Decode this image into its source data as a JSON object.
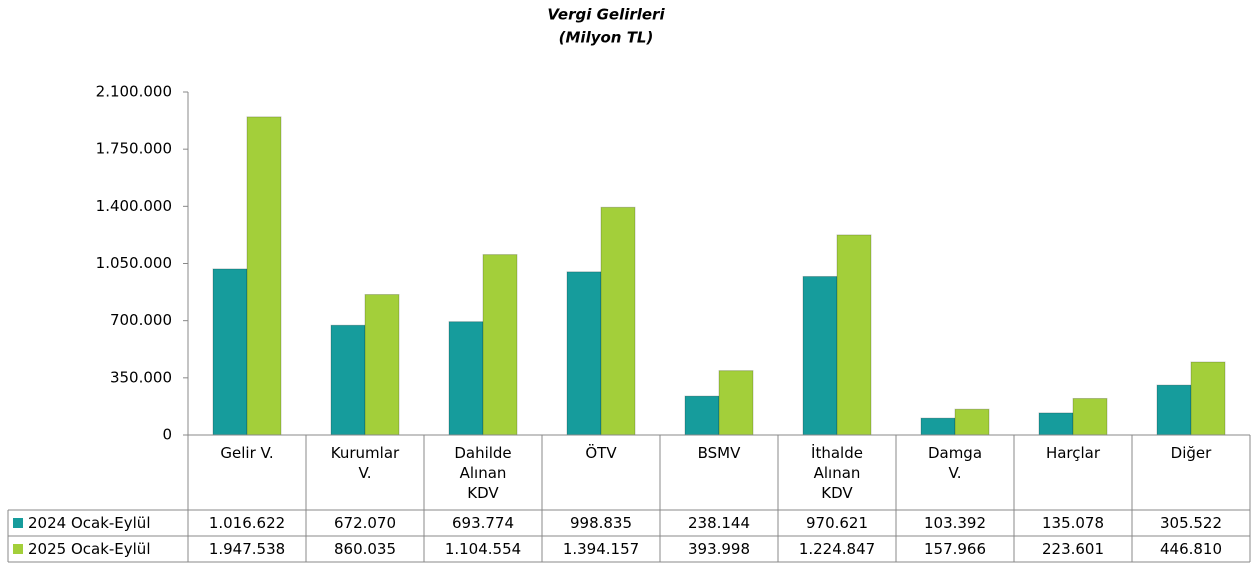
{
  "chart_data": {
    "type": "bar",
    "title": "Vergi Gelirleri",
    "subtitle": "(Milyon TL)",
    "categories": [
      "Gelir V.",
      "Kurumlar\nV.",
      "Dahilde\nAlınan\nKDV",
      "ÖTV",
      "BSMV",
      "İthalde\nAlınan\nKDV",
      "Damga\nV.",
      "Harçlar",
      "Diğer"
    ],
    "series": [
      {
        "name": "2024 Ocak-Eylül",
        "color": "#169c9c",
        "values": [
          1016622,
          672070,
          693774,
          998835,
          238144,
          970621,
          103392,
          135078,
          305522
        ],
        "value_labels": [
          "1.016.622",
          "672.070",
          "693.774",
          "998.835",
          "238.144",
          "970.621",
          "103.392",
          "135.078",
          "305.522"
        ]
      },
      {
        "name": "2025 Ocak-Eylül",
        "color": "#a3cf3a",
        "values": [
          1947538,
          860035,
          1104554,
          1394157,
          393998,
          1224847,
          157966,
          223601,
          446810
        ],
        "value_labels": [
          "1.947.538",
          "860.035",
          "1.104.554",
          "1.394.157",
          "393.998",
          "1.224.847",
          "157.966",
          "223.601",
          "446.810"
        ]
      }
    ],
    "ylim": [
      0,
      2100000
    ],
    "yticks": [
      0,
      {
        "value": 350000,
        "label": "350.000"
      },
      {
        "value": 700000,
        "label": "700.000"
      },
      {
        "value": 1050000,
        "label": "1.050.000"
      },
      {
        "value": 1400000,
        "label": "1.400.000"
      },
      {
        "value": 1750000,
        "label": "1.750.000"
      },
      {
        "value": 2100000,
        "label": "2.100.000"
      }
    ],
    "grid": false
  }
}
